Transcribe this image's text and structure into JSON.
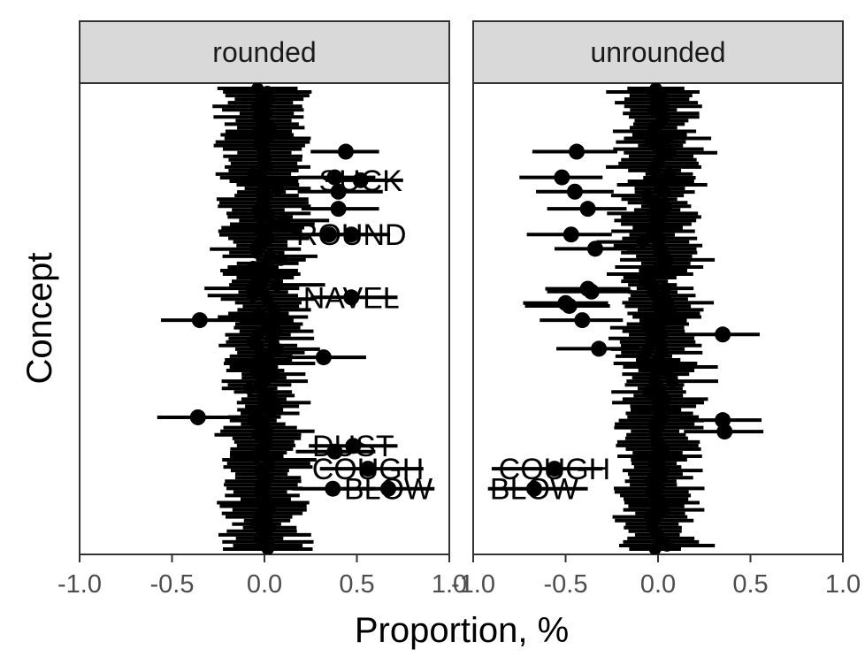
{
  "chart_data": {
    "type": "scatter",
    "xlabel": "Proportion, %",
    "ylabel": "Concept",
    "xlim": [
      -1.0,
      1.0
    ],
    "x_ticks": [
      "-1.0",
      "-0.5",
      "0.0",
      "0.5",
      "1.0"
    ],
    "grid": false,
    "panels": [
      {
        "name": "rounded",
        "highlighted": [
          {
            "label": "SUCK",
            "x": 0.52,
            "xmin": 0.33,
            "xmax": 0.75
          },
          {
            "label": "ROUND",
            "x": 0.47,
            "xmin": 0.25,
            "xmax": 0.68
          },
          {
            "label": "NAVEL",
            "x": 0.47,
            "xmin": 0.25,
            "xmax": 0.72
          },
          {
            "label": "DUST",
            "x": 0.48,
            "xmin": 0.24,
            "xmax": 0.72
          },
          {
            "label": "COUGH",
            "x": 0.56,
            "xmin": 0.3,
            "xmax": 0.86
          },
          {
            "label": "BLOW",
            "x": 0.67,
            "xmin": 0.38,
            "xmax": 0.92
          }
        ],
        "other_points": [
          {
            "x": 0.44,
            "xmin": 0.25,
            "xmax": 0.62
          },
          {
            "x": 0.38,
            "xmin": 0.18,
            "xmax": 0.6
          },
          {
            "x": 0.4,
            "xmin": 0.2,
            "xmax": 0.62
          },
          {
            "x": 0.35,
            "xmin": 0.15,
            "xmax": 0.55
          },
          {
            "x": 0.4,
            "xmin": 0.18,
            "xmax": 0.64
          },
          {
            "x": 0.32,
            "xmin": 0.12,
            "xmax": 0.55
          },
          {
            "x": -0.35,
            "xmin": -0.56,
            "xmax": -0.12
          },
          {
            "x": -0.36,
            "xmin": -0.58,
            "xmax": -0.14
          },
          {
            "x": 0.38,
            "xmin": 0.17,
            "xmax": 0.6
          },
          {
            "x": 0.37,
            "xmin": 0.15,
            "xmax": 0.6
          }
        ]
      },
      {
        "name": "unrounded",
        "highlighted": [
          {
            "label": "COUGH",
            "x": -0.56,
            "xmin": -0.9,
            "xmax": -0.3
          },
          {
            "label": "BLOW",
            "x": -0.67,
            "xmin": -0.92,
            "xmax": -0.38
          }
        ],
        "other_points": [
          {
            "x": -0.44,
            "xmin": -0.68,
            "xmax": -0.22
          },
          {
            "x": -0.52,
            "xmin": -0.75,
            "xmax": -0.3
          },
          {
            "x": -0.45,
            "xmin": -0.66,
            "xmax": -0.24
          },
          {
            "x": -0.38,
            "xmin": -0.6,
            "xmax": -0.17
          },
          {
            "x": -0.47,
            "xmin": -0.71,
            "xmax": -0.25
          },
          {
            "x": -0.34,
            "xmin": -0.56,
            "xmax": -0.12
          },
          {
            "x": -0.36,
            "xmin": -0.6,
            "xmax": -0.14
          },
          {
            "x": -0.48,
            "xmin": -0.72,
            "xmax": -0.26
          },
          {
            "x": -0.41,
            "xmin": -0.64,
            "xmax": -0.19
          },
          {
            "x": -0.32,
            "xmin": -0.55,
            "xmax": -0.1
          },
          {
            "x": 0.35,
            "xmin": 0.12,
            "xmax": 0.56
          },
          {
            "x": 0.36,
            "xmin": 0.14,
            "xmax": 0.57
          },
          {
            "x": -0.5,
            "xmin": -0.73,
            "xmax": -0.27
          },
          {
            "x": -0.38,
            "xmin": -0.61,
            "xmax": -0.15
          },
          {
            "x": 0.35,
            "xmin": 0.13,
            "xmax": 0.55
          }
        ]
      }
    ]
  }
}
